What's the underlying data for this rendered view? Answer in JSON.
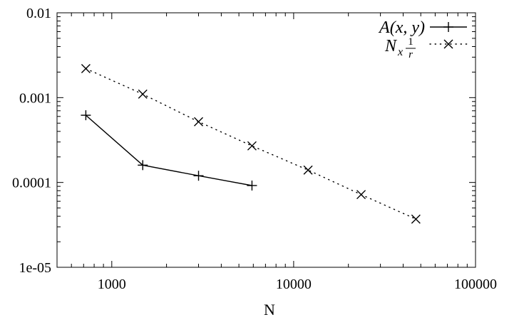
{
  "chart_data": {
    "type": "line",
    "title": "",
    "xlabel": "N",
    "ylabel": "",
    "xscale": "log",
    "yscale": "log",
    "xlim": [
      500,
      100000
    ],
    "ylim": [
      1e-05,
      0.01
    ],
    "x_ticks": [
      {
        "value": 1000,
        "label": "1000"
      },
      {
        "value": 10000,
        "label": "10000"
      },
      {
        "value": 100000,
        "label": "100000"
      }
    ],
    "y_ticks": [
      {
        "value": 1e-05,
        "label": "1e-05"
      },
      {
        "value": 0.0001,
        "label": "0.0001"
      },
      {
        "value": 0.001,
        "label": "0.001"
      },
      {
        "value": 0.01,
        "label": "0.01"
      }
    ],
    "grid": false,
    "legend_position": "top-right",
    "series": [
      {
        "name": "A(x, y)",
        "style": "solid",
        "marker": "plus",
        "color": "#000000",
        "x": [
          720,
          1480,
          3000,
          5900
        ],
        "y": [
          0.00062,
          0.00016,
          0.00012,
          9.2e-05
        ]
      },
      {
        "name": "Nx 1/r",
        "style": "dotted",
        "marker": "cross",
        "color": "#000000",
        "x": [
          720,
          1480,
          3000,
          5900,
          12000,
          23500,
          47000
        ],
        "y": [
          0.0022,
          0.0011,
          0.00052,
          0.00027,
          0.00014,
          7.2e-05,
          3.7e-05
        ]
      }
    ]
  }
}
